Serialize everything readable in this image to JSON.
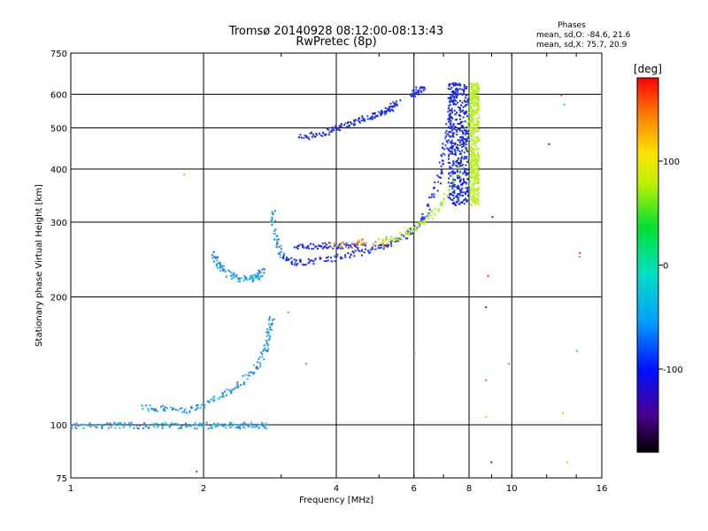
{
  "chart_data": {
    "type": "scatter",
    "title": "Tromsø 20140928 08:12:00-08:13:43",
    "subtitle": "RwPretec (8p)",
    "xlabel": "Frequency [MHz]",
    "ylabel": "Stationary phase Virtual Height [km]",
    "x_scale": "log",
    "y_scale": "log",
    "xlim": [
      1,
      16
    ],
    "ylim": [
      75,
      750
    ],
    "x_ticks": [
      1,
      2,
      4,
      6,
      8,
      10,
      16
    ],
    "x_tick_labels": [
      "1",
      "2",
      "4",
      "6",
      "8",
      "10",
      "16"
    ],
    "y_ticks": [
      75,
      100,
      200,
      300,
      400,
      500,
      600,
      750
    ],
    "y_tick_labels": [
      "75",
      "100",
      "200",
      "300",
      "400",
      "500",
      "600",
      "750"
    ],
    "grid": true,
    "stats": {
      "heading": "Phases",
      "line_o": "mean, sd,O: -84.6, 21.6",
      "line_x": "mean, sd,X:  75.7, 20.9"
    },
    "colorbar": {
      "label": "[deg]",
      "min": -180,
      "max": 180,
      "ticks": [
        100,
        0,
        -100
      ],
      "tick_labels": [
        "100",
        "0",
        "-100"
      ]
    },
    "trace_colors": {
      "o_mode": "#1a2be0",
      "o_mode_low": "#2f7de8",
      "cyan": "#2ab8e6",
      "x_mode": "#b8f020",
      "orange": "#f08a10"
    },
    "traces": [
      {
        "mode": "o",
        "points": [
          [
            1.0,
            100
          ],
          [
            1.1,
            100
          ],
          [
            1.25,
            100
          ],
          [
            1.4,
            100
          ],
          [
            1.6,
            100
          ],
          [
            1.8,
            100
          ],
          [
            2.0,
            100
          ],
          [
            2.2,
            100
          ],
          [
            2.4,
            100
          ],
          [
            2.6,
            100
          ],
          [
            2.8,
            100
          ]
        ]
      },
      {
        "mode": "o",
        "points": [
          [
            1.45,
            110
          ],
          [
            1.6,
            110
          ],
          [
            1.8,
            108
          ],
          [
            2.0,
            112
          ],
          [
            2.2,
            118
          ],
          [
            2.4,
            125
          ],
          [
            2.6,
            135
          ],
          [
            2.75,
            150
          ],
          [
            2.8,
            165
          ],
          [
            2.85,
            180
          ]
        ]
      },
      {
        "mode": "o",
        "points": [
          [
            2.1,
            255
          ],
          [
            2.15,
            240
          ],
          [
            2.25,
            228
          ],
          [
            2.4,
            222
          ],
          [
            2.55,
            222
          ],
          [
            2.65,
            225
          ],
          [
            2.72,
            232
          ]
        ]
      },
      {
        "mode": "o",
        "points": [
          [
            2.85,
            320
          ],
          [
            2.9,
            280
          ],
          [
            3.0,
            250
          ],
          [
            3.2,
            242
          ],
          [
            3.5,
            243
          ],
          [
            4.0,
            248
          ],
          [
            4.5,
            255
          ],
          [
            5.0,
            262
          ],
          [
            5.5,
            272
          ],
          [
            6.0,
            290
          ],
          [
            6.4,
            320
          ],
          [
            6.8,
            380
          ],
          [
            7.0,
            450
          ],
          [
            7.2,
            520
          ],
          [
            7.3,
            600
          ],
          [
            7.5,
            640
          ]
        ]
      },
      {
        "mode": "o",
        "points": [
          [
            3.2,
            265
          ],
          [
            3.5,
            265
          ],
          [
            3.8,
            265
          ],
          [
            4.2,
            265
          ],
          [
            4.6,
            265
          ]
        ]
      },
      {
        "mode": "o",
        "points": [
          [
            3.3,
            475
          ],
          [
            3.6,
            485
          ],
          [
            3.9,
            495
          ],
          [
            4.2,
            510
          ],
          [
            4.5,
            525
          ],
          [
            4.8,
            535
          ],
          [
            5.1,
            545
          ],
          [
            5.3,
            560
          ],
          [
            5.5,
            575
          ]
        ]
      },
      {
        "mode": "o",
        "points": [
          [
            5.9,
            600
          ],
          [
            6.1,
            615
          ],
          [
            6.3,
            630
          ]
        ]
      },
      {
        "mode": "x",
        "points": [
          [
            5.0,
            270
          ],
          [
            5.5,
            278
          ],
          [
            6.0,
            290
          ],
          [
            6.5,
            310
          ],
          [
            7.0,
            340
          ],
          [
            7.5,
            390
          ],
          [
            7.8,
            450
          ],
          [
            8.0,
            530
          ],
          [
            8.2,
            600
          ],
          [
            8.3,
            640
          ]
        ]
      }
    ]
  }
}
